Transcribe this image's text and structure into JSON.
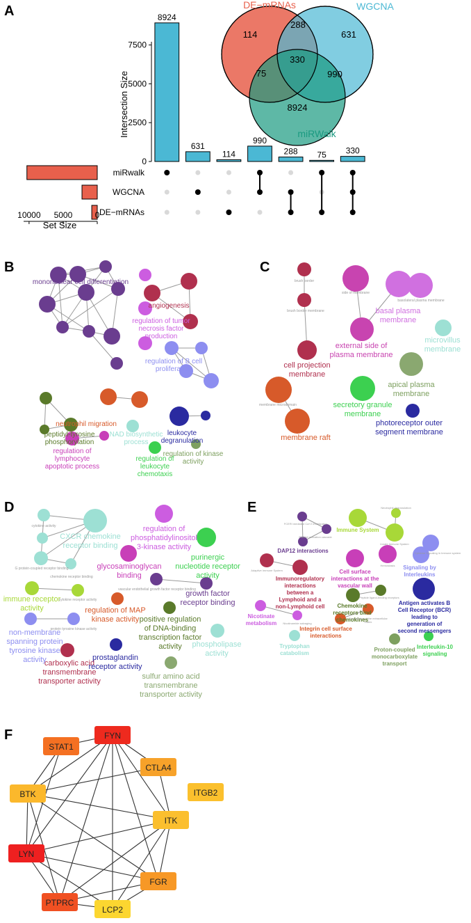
{
  "panels": {
    "A": "A",
    "B": "B",
    "C": "C",
    "D": "D",
    "E": "E",
    "F": "F"
  },
  "venn": {
    "sets": [
      {
        "name": "DE−mRNAs",
        "color": "#e8604c"
      },
      {
        "name": "WGCNA",
        "color": "#4bb8d4"
      },
      {
        "name": "miRWalk",
        "color": "#1a9a80"
      }
    ],
    "regions": {
      "de_only": "114",
      "de_wg": "288",
      "wg_only": "631",
      "center": "330",
      "de_mir": "75",
      "wg_mir": "990",
      "mir_only": "8924"
    }
  },
  "chart_data": {
    "type": "bar",
    "ylabel": "Intersection Size",
    "xlabel": "Set Size",
    "ylim": [
      0,
      9500
    ],
    "yticks": [
      "0",
      "2500",
      "5000",
      "7500"
    ],
    "bar_color": "#4bb8d4",
    "intersections": [
      {
        "value": 8924,
        "label": "8924",
        "members": [
          0
        ]
      },
      {
        "value": 631,
        "label": "631",
        "members": [
          1
        ]
      },
      {
        "value": 114,
        "label": "114",
        "members": [
          2
        ]
      },
      {
        "value": 990,
        "label": "990",
        "members": [
          0,
          1
        ]
      },
      {
        "value": 288,
        "label": "288",
        "members": [
          1,
          2
        ]
      },
      {
        "value": 75,
        "label": "75",
        "members": [
          0,
          2
        ]
      },
      {
        "value": 330,
        "label": "330",
        "members": [
          0,
          1,
          2
        ]
      }
    ],
    "set_rows": [
      "miRwalk",
      "WGCNA",
      "DE−mRNAs"
    ],
    "set_sizes": [
      10319,
      2239,
      807
    ],
    "set_size_ticks": [
      "10000",
      "5000",
      "0"
    ],
    "set_bar_color": "#e8604c"
  },
  "panelB": {
    "nodes": [
      {
        "label": "mononuclear cell differentiation",
        "color": "#6a3d8f",
        "big": true
      },
      {
        "label": "angiogenesis",
        "color": "#b0304e",
        "big": true
      },
      {
        "label": "regulation of tumor necrosis factor production",
        "color": "#cc5de0",
        "big": true
      },
      {
        "label": "regulation of B cell proliferation",
        "color": "#8d8ef0",
        "big": true
      },
      {
        "label": "neutrophil migration",
        "color": "#d75a2a",
        "big": true
      },
      {
        "label": "peptidyl-tyrosine phosphorylation",
        "color": "#5a7a2a",
        "big": true
      },
      {
        "label": "leukocyte degranulation",
        "color": "#2a2aa0",
        "big": true
      },
      {
        "label": "NAD biosynthetic process",
        "color": "#9de0d4",
        "big": true
      },
      {
        "label": "regulation of lymphocyte apoptotic process",
        "color": "#c83fb8",
        "big": true
      },
      {
        "label": "regulation of leukocyte chemotaxis",
        "color": "#3cd050",
        "big": true
      },
      {
        "label": "regulation of kinase activity",
        "color": "#7ea060",
        "big": true
      }
    ]
  },
  "panelC": {
    "nodes": [
      {
        "label": "brush border",
        "color": "#b0304e"
      },
      {
        "label": "brush border membrane",
        "color": "#b0304e"
      },
      {
        "label": "cell projection membrane",
        "color": "#b0304e"
      },
      {
        "label": "side of membrane",
        "color": "#c844b0"
      },
      {
        "label": "external side of plasma membrane",
        "color": "#c844b0"
      },
      {
        "label": "basolateral plasma membrane",
        "color": "#d070e0"
      },
      {
        "label": "basal plasma membrane",
        "color": "#d070e0"
      },
      {
        "label": "microvillus membrane",
        "color": "#9de0d4"
      },
      {
        "label": "apical plasma membrane",
        "color": "#7ea060"
      },
      {
        "label": "membrane microdomain",
        "color": "#d75a2a"
      },
      {
        "label": "membrane raft",
        "color": "#d75a2a"
      },
      {
        "label": "secretory granule membrane",
        "color": "#3cd050"
      },
      {
        "label": "photoreceptor outer segment membrane",
        "color": "#2a2aa0"
      }
    ]
  },
  "panelD": {
    "nodes": [
      {
        "label": "CXCR chemokine receptor binding",
        "color": "#9de0d4"
      },
      {
        "label": "regulation of phosphatidylinositol 3-kinase activity",
        "color": "#cc5de0"
      },
      {
        "label": "purinergic nucleotide receptor activity",
        "color": "#3cd050"
      },
      {
        "label": "glycosaminoglycan binding",
        "color": "#c83fb8"
      },
      {
        "label": "growth factor receptor binding",
        "color": "#6a3d8f"
      },
      {
        "label": "immune receptor activity",
        "color": "#a8d838"
      },
      {
        "label": "regulation of MAP kinase activity",
        "color": "#d75a2a"
      },
      {
        "label": "positive regulation of DNA-binding transcription factor activity",
        "color": "#5a7a2a"
      },
      {
        "label": "phospholipase activity",
        "color": "#9de0d4"
      },
      {
        "label": "non-membrane spanning protein tyrosine kinase activity",
        "color": "#8d8ef0"
      },
      {
        "label": "carboxylic acid transmembrane transporter activity",
        "color": "#b0304e"
      },
      {
        "label": "prostaglandin receptor activity",
        "color": "#2a2aa0"
      },
      {
        "label": "sulfur amino acid transmembrane transporter activity",
        "color": "#8aa870"
      }
    ]
  },
  "panelE": {
    "nodes": [
      {
        "label": "DAP12 interactions",
        "color": "#6a3d8f"
      },
      {
        "label": "Immune System",
        "color": "#a8d838"
      },
      {
        "label": "Immunoregulatory interactions between a Lymphoid and a non-Lymphoid cell",
        "color": "#b0304e"
      },
      {
        "label": "Cell surface interactions at the vascular wall",
        "color": "#c83fb8"
      },
      {
        "label": "Signaling by Interleukins",
        "color": "#8d8ef0"
      },
      {
        "label": "Chemokine receptors bind chemokines",
        "color": "#5a7a2a"
      },
      {
        "label": "Antigen activates B Cell Receptor (BCR) leading to generation of second messengers",
        "color": "#2a2aa0"
      },
      {
        "label": "Nicotinate metabolism",
        "color": "#cc5de0"
      },
      {
        "label": "Tryptophan catabolism",
        "color": "#9de0d4"
      },
      {
        "label": "Integrin cell surface interactions",
        "color": "#d75a2a"
      },
      {
        "label": "Proton-coupled monocarboxylate transport",
        "color": "#7ea060"
      },
      {
        "label": "Interleukin-10 signaling",
        "color": "#3cd050"
      }
    ]
  },
  "panelF": {
    "nodes": [
      {
        "id": "FYN",
        "label": "FYN",
        "color": "#ee2a1e"
      },
      {
        "id": "STAT1",
        "label": "STAT1",
        "color": "#f47022"
      },
      {
        "id": "CTLA4",
        "label": "CTLA4",
        "color": "#f7a22a"
      },
      {
        "id": "ITGB2",
        "label": "ITGB2",
        "color": "#fbc02d"
      },
      {
        "id": "BTK",
        "label": "BTK",
        "color": "#fbb82c"
      },
      {
        "id": "ITK",
        "label": "ITK",
        "color": "#fbbf2e"
      },
      {
        "id": "LYN",
        "label": "LYN",
        "color": "#ee2020"
      },
      {
        "id": "FGR",
        "label": "FGR",
        "color": "#f79826"
      },
      {
        "id": "PTPRC",
        "label": "PTPRC",
        "color": "#f05022"
      },
      {
        "id": "LCP2",
        "label": "LCP2",
        "color": "#fcd630"
      }
    ]
  }
}
